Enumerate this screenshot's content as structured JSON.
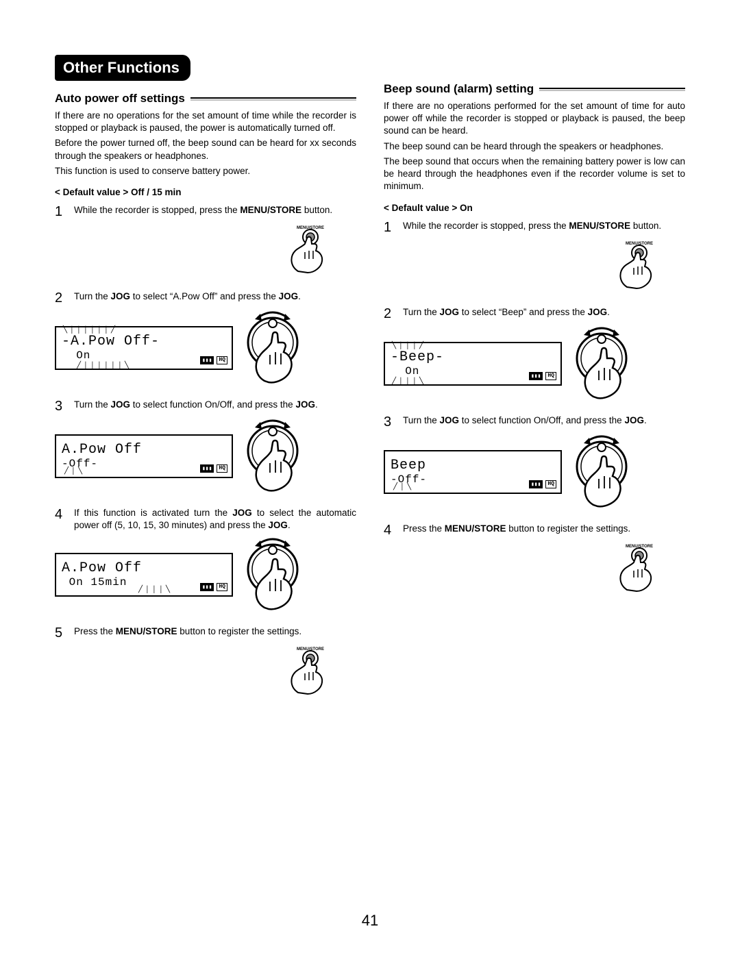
{
  "page_number": "41",
  "header_pill": "Other Functions",
  "left": {
    "subheading": "Auto power off settings",
    "paragraphs": [
      "If there are no operations for the set amount of time while the recorder is stopped or playback is paused, the power is automatically turned off.",
      "Before the power turned off, the beep sound can be heard for xx seconds through the speakers or headphones.",
      "This function is used to conserve battery power."
    ],
    "default_value": "< Default value > Off / 15 min",
    "steps": [
      {
        "num": "1",
        "html": "While the recorder is stopped, press the <b>MENU/STORE</b> button."
      },
      {
        "num": "2",
        "html": "Turn the <b>JOG</b> to select “A.Pow Off” and press the <b>JOG</b>."
      },
      {
        "num": "3",
        "html": "Turn the <b>JOG</b> to select function On/Off, and press the <b>JOG</b>."
      },
      {
        "num": "4",
        "html": "If this function is activated turn the <b>JOG</b> to select the automatic power off (5, 10, 15, 30 minutes) and press the <b>JOG</b>."
      },
      {
        "num": "5",
        "html": "Press the <b>MENU/STORE</b> button to register the settings."
      }
    ],
    "lcd": [
      {
        "line1": "A.Pow Off",
        "line2": "On",
        "sel": "top"
      },
      {
        "line1": "A.Pow Off",
        "line2": "Off",
        "sel": "bot"
      },
      {
        "line1": "A.Pow Off",
        "line2": "On   15min",
        "sel": "time"
      }
    ],
    "button_label": "MENU/STORE"
  },
  "right": {
    "subheading": "Beep sound (alarm) setting",
    "paragraphs": [
      "If there are no operations performed for the set amount of time for auto power off while the recorder is stopped or playback is paused, the beep sound can be heard.",
      "The beep sound can be heard through the speakers or headphones.",
      "The beep sound that occurs when the remaining battery power is low can be heard through the headphones even if the recorder volume is set to minimum."
    ],
    "default_value": "< Default value > On",
    "steps": [
      {
        "num": "1",
        "html": "While the recorder is stopped, press the <b>MENU/STORE</b> button."
      },
      {
        "num": "2",
        "html": "Turn the <b>JOG</b> to select “Beep” and press the <b>JOG</b>."
      },
      {
        "num": "3",
        "html": "Turn the <b>JOG</b> to select function On/Off, and press the <b>JOG</b>."
      },
      {
        "num": "4",
        "html": "Press the <b>MENU/STORE</b> button to register the settings."
      }
    ],
    "lcd": [
      {
        "line1": "Beep",
        "line2": "On",
        "sel": "top"
      },
      {
        "line1": "Beep",
        "line2": "Off",
        "sel": "bot"
      }
    ],
    "button_label": "MENU/STORE"
  },
  "icons": {
    "battery": "▮▮▮",
    "hq": "HQ"
  }
}
